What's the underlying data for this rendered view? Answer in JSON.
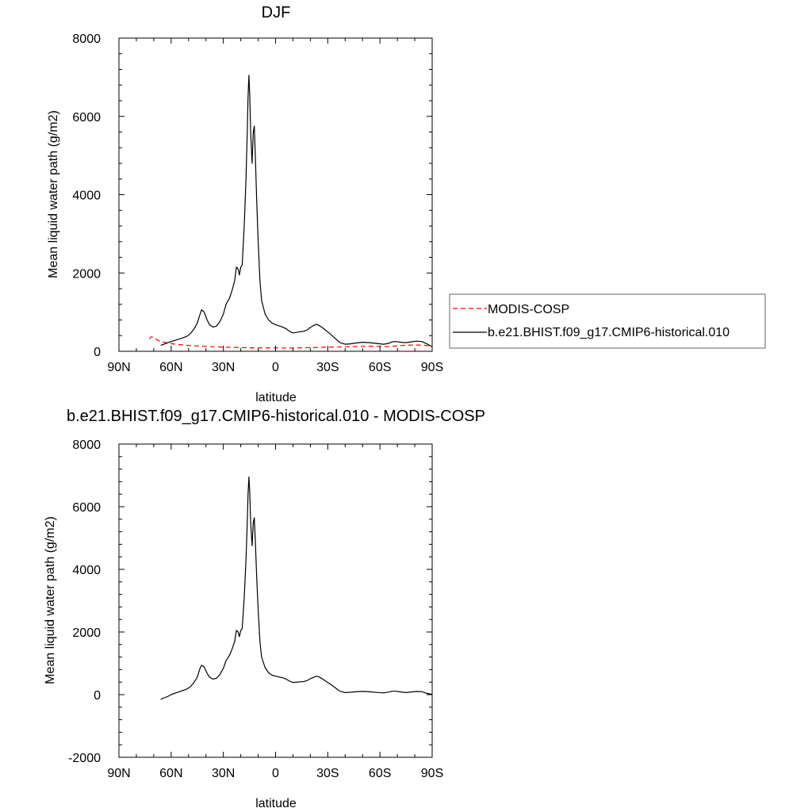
{
  "chart_data": [
    {
      "type": "line",
      "title": "DJF",
      "xlabel": "latitude",
      "ylabel": "Mean liquid water path (g/m2)",
      "xlim": [
        90,
        -90
      ],
      "ylim": [
        0,
        8000
      ],
      "x_ticks": [
        90,
        60,
        30,
        0,
        -30,
        -60,
        -90
      ],
      "x_tick_labels": [
        "90N",
        "60N",
        "30N",
        "0",
        "30S",
        "60S",
        "90S"
      ],
      "y_ticks": [
        0,
        2000,
        4000,
        6000,
        8000
      ],
      "y_tick_labels": [
        "0",
        "2000",
        "4000",
        "6000",
        "8000"
      ],
      "grid": false,
      "legend_position": "right",
      "series": [
        {
          "name": "MODIS-COSP",
          "color": "#ff0000",
          "dash": "dashed",
          "points": [
            [
              72.5,
              310
            ],
            [
              71.5,
              370
            ],
            [
              70,
              350
            ],
            [
              68,
              290
            ],
            [
              66,
              250
            ],
            [
              63,
              220
            ],
            [
              60,
              195
            ],
            [
              55,
              170
            ],
            [
              50,
              150
            ],
            [
              45,
              135
            ],
            [
              40,
              125
            ],
            [
              35,
              115
            ],
            [
              30,
              105
            ],
            [
              25,
              100
            ],
            [
              20,
              95
            ],
            [
              15,
              90
            ],
            [
              10,
              88
            ],
            [
              5,
              90
            ],
            [
              0,
              85
            ],
            [
              -5,
              85
            ],
            [
              -10,
              85
            ],
            [
              -15,
              90
            ],
            [
              -20,
              95
            ],
            [
              -25,
              100
            ],
            [
              -30,
              105
            ],
            [
              -35,
              110
            ],
            [
              -40,
              115
            ],
            [
              -45,
              120
            ],
            [
              -50,
              125
            ],
            [
              -55,
              130
            ],
            [
              -60,
              125
            ],
            [
              -65,
              120
            ],
            [
              -70,
              140
            ],
            [
              -75,
              155
            ],
            [
              -80,
              160
            ],
            [
              -85,
              155
            ],
            [
              -88,
              140
            ],
            [
              -90,
              110
            ]
          ]
        },
        {
          "name": "b.e21.BHIST.f09_g17.CMIP6-historical.010",
          "color": "#000000",
          "dash": "solid",
          "points": [
            [
              66,
              150
            ],
            [
              63,
              200
            ],
            [
              60,
              250
            ],
            [
              57,
              290
            ],
            [
              54,
              330
            ],
            [
              51,
              380
            ],
            [
              49,
              450
            ],
            [
              47,
              560
            ],
            [
              45,
              720
            ],
            [
              43.5,
              930
            ],
            [
              42.5,
              1060
            ],
            [
              41,
              1000
            ],
            [
              39.5,
              820
            ],
            [
              38,
              680
            ],
            [
              36,
              620
            ],
            [
              34,
              640
            ],
            [
              32,
              760
            ],
            [
              30,
              950
            ],
            [
              28.5,
              1200
            ],
            [
              26.5,
              1350
            ],
            [
              25,
              1550
            ],
            [
              23.5,
              1800
            ],
            [
              22.5,
              2150
            ],
            [
              21.5,
              2100
            ],
            [
              20.8,
              1950
            ],
            [
              20,
              2150
            ],
            [
              19.2,
              2200
            ],
            [
              18,
              3200
            ],
            [
              17,
              4400
            ],
            [
              16.3,
              5500
            ],
            [
              15.8,
              6500
            ],
            [
              15.3,
              7050
            ],
            [
              14.8,
              6500
            ],
            [
              14.3,
              5600
            ],
            [
              13.5,
              4800
            ],
            [
              12.8,
              5600
            ],
            [
              12.2,
              5750
            ],
            [
              11.5,
              4800
            ],
            [
              10.8,
              3800
            ],
            [
              10,
              2800
            ],
            [
              9,
              1800
            ],
            [
              8,
              1300
            ],
            [
              6,
              950
            ],
            [
              4,
              800
            ],
            [
              2,
              720
            ],
            [
              0,
              680
            ],
            [
              -2,
              650
            ],
            [
              -4,
              620
            ],
            [
              -6,
              580
            ],
            [
              -8,
              510
            ],
            [
              -10,
              470
            ],
            [
              -12,
              480
            ],
            [
              -14,
              500
            ],
            [
              -16,
              510
            ],
            [
              -18,
              540
            ],
            [
              -20,
              610
            ],
            [
              -22,
              660
            ],
            [
              -23.5,
              690
            ],
            [
              -25,
              660
            ],
            [
              -27,
              600
            ],
            [
              -29,
              530
            ],
            [
              -31,
              460
            ],
            [
              -33,
              380
            ],
            [
              -35,
              300
            ],
            [
              -37,
              220
            ],
            [
              -40,
              180
            ],
            [
              -43,
              190
            ],
            [
              -46,
              210
            ],
            [
              -50,
              230
            ],
            [
              -54,
              220
            ],
            [
              -58,
              200
            ],
            [
              -62,
              180
            ],
            [
              -65,
              200
            ],
            [
              -67,
              240
            ],
            [
              -69,
              250
            ],
            [
              -72,
              230
            ],
            [
              -75,
              220
            ],
            [
              -78,
              240
            ],
            [
              -81,
              260
            ],
            [
              -84,
              250
            ],
            [
              -87,
              190
            ],
            [
              -90,
              120
            ]
          ]
        }
      ]
    },
    {
      "type": "line",
      "title": "b.e21.BHIST.f09_g17.CMIP6-historical.010 - MODIS-COSP",
      "xlabel": "latitude",
      "ylabel": "Mean liquid water path (g/m2)",
      "xlim": [
        90,
        -90
      ],
      "ylim": [
        -2000,
        8000
      ],
      "x_ticks": [
        90,
        60,
        30,
        0,
        -30,
        -60,
        -90
      ],
      "x_tick_labels": [
        "90N",
        "60N",
        "30N",
        "0",
        "30S",
        "60S",
        "90S"
      ],
      "y_ticks": [
        -2000,
        0,
        2000,
        4000,
        6000,
        8000
      ],
      "y_tick_labels": [
        "-2000",
        "0",
        "2000",
        "4000",
        "6000",
        "8000"
      ],
      "grid": false,
      "series": [
        {
          "color": "#000000",
          "dash": "solid",
          "points": [
            [
              66,
              -150
            ],
            [
              64,
              -100
            ],
            [
              62,
              -60
            ],
            [
              60,
              0
            ],
            [
              57,
              60
            ],
            [
              54,
              120
            ],
            [
              51,
              180
            ],
            [
              49,
              250
            ],
            [
              47,
              380
            ],
            [
              45,
              560
            ],
            [
              43.5,
              820
            ],
            [
              42.5,
              940
            ],
            [
              41,
              880
            ],
            [
              39.5,
              700
            ],
            [
              38,
              560
            ],
            [
              36,
              500
            ],
            [
              34,
              520
            ],
            [
              32,
              640
            ],
            [
              30,
              840
            ],
            [
              28.5,
              1080
            ],
            [
              26.5,
              1250
            ],
            [
              25,
              1450
            ],
            [
              23.5,
              1700
            ],
            [
              22.5,
              2050
            ],
            [
              21.5,
              2000
            ],
            [
              20.8,
              1850
            ],
            [
              20,
              2050
            ],
            [
              19.2,
              2100
            ],
            [
              18,
              3100
            ],
            [
              17,
              4300
            ],
            [
              16.3,
              5400
            ],
            [
              15.8,
              6400
            ],
            [
              15.3,
              6950
            ],
            [
              14.8,
              6400
            ],
            [
              14.3,
              5500
            ],
            [
              13.5,
              4750
            ],
            [
              12.8,
              5500
            ],
            [
              12.2,
              5650
            ],
            [
              11.5,
              4700
            ],
            [
              10.8,
              3700
            ],
            [
              10,
              2700
            ],
            [
              9,
              1700
            ],
            [
              8,
              1200
            ],
            [
              6,
              860
            ],
            [
              4,
              700
            ],
            [
              2,
              620
            ],
            [
              0,
              590
            ],
            [
              -2,
              565
            ],
            [
              -4,
              540
            ],
            [
              -6,
              500
            ],
            [
              -8,
              430
            ],
            [
              -10,
              390
            ],
            [
              -12,
              395
            ],
            [
              -14,
              410
            ],
            [
              -16,
              415
            ],
            [
              -18,
              445
            ],
            [
              -20,
              510
            ],
            [
              -22,
              560
            ],
            [
              -23.5,
              590
            ],
            [
              -25,
              565
            ],
            [
              -27,
              500
            ],
            [
              -29,
              425
            ],
            [
              -31,
              355
            ],
            [
              -33,
              275
            ],
            [
              -35,
              190
            ],
            [
              -37,
              110
            ],
            [
              -40,
              65
            ],
            [
              -43,
              75
            ],
            [
              -46,
              90
            ],
            [
              -50,
              105
            ],
            [
              -54,
              90
            ],
            [
              -58,
              70
            ],
            [
              -62,
              55
            ],
            [
              -65,
              80
            ],
            [
              -67,
              110
            ],
            [
              -69,
              110
            ],
            [
              -72,
              85
            ],
            [
              -75,
              65
            ],
            [
              -78,
              85
            ],
            [
              -81,
              100
            ],
            [
              -84,
              95
            ],
            [
              -87,
              40
            ],
            [
              -90,
              10
            ]
          ]
        }
      ]
    }
  ]
}
